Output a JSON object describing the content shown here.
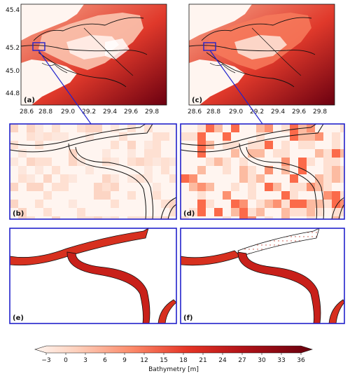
{
  "panels": [
    {
      "label": "(a)"
    },
    {
      "label": "(b)"
    },
    {
      "label": "(c)"
    },
    {
      "label": "(d)"
    },
    {
      "label": "(e)"
    },
    {
      "label": "(f)"
    }
  ],
  "map_axes": {
    "x_ticks": [
      "28.6",
      "28.8",
      "29.0",
      "29.2",
      "29.4",
      "29.6",
      "29.8"
    ],
    "y_ticks": [
      "45.4",
      "45.2",
      "45.0",
      "44.8"
    ]
  },
  "colorbar": {
    "label": "Bathymetry [m]",
    "ticks": [
      "−3",
      "0",
      "3",
      "6",
      "9",
      "12",
      "15",
      "18",
      "21",
      "24",
      "27",
      "30",
      "33",
      "36"
    ],
    "range": [
      -3,
      36
    ]
  },
  "colors": {
    "frame_highlight": "#2222cc",
    "low": "#fff5f0",
    "mid": "#ef3b2c",
    "high": "#67000d"
  }
}
